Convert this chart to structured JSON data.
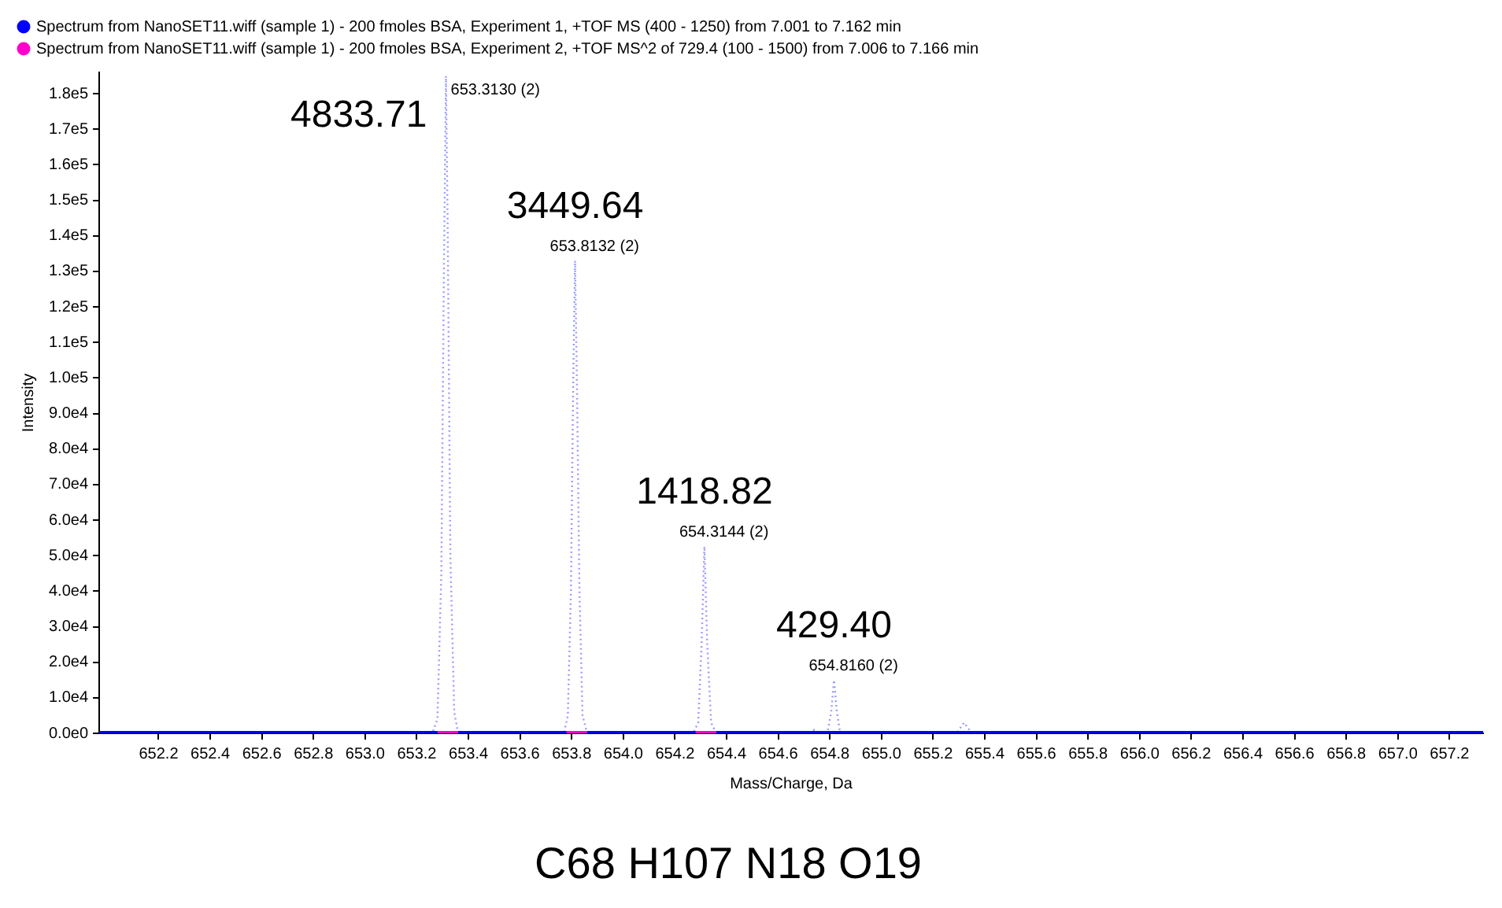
{
  "chart_data": {
    "type": "line",
    "xlabel": "Mass/Charge, Da",
    "ylabel": "Intensity",
    "xlim": [
      651.97,
      657.33
    ],
    "ylim": [
      0,
      186000
    ],
    "xticks": [
      {
        "value": 652.2,
        "label": "652.2"
      },
      {
        "value": 652.4,
        "label": "652.4"
      },
      {
        "value": 652.6,
        "label": "652.6"
      },
      {
        "value": 652.8,
        "label": "652.8"
      },
      {
        "value": 653.0,
        "label": "653.0"
      },
      {
        "value": 653.2,
        "label": "653.2"
      },
      {
        "value": 653.4,
        "label": "653.4"
      },
      {
        "value": 653.6,
        "label": "653.6"
      },
      {
        "value": 653.8,
        "label": "653.8"
      },
      {
        "value": 654.0,
        "label": "654.0"
      },
      {
        "value": 654.2,
        "label": "654.2"
      },
      {
        "value": 654.4,
        "label": "654.4"
      },
      {
        "value": 654.6,
        "label": "654.6"
      },
      {
        "value": 654.8,
        "label": "654.8"
      },
      {
        "value": 655.0,
        "label": "655.0"
      },
      {
        "value": 655.2,
        "label": "655.2"
      },
      {
        "value": 655.4,
        "label": "655.4"
      },
      {
        "value": 655.6,
        "label": "655.6"
      },
      {
        "value": 655.8,
        "label": "655.8"
      },
      {
        "value": 656.0,
        "label": "656.0"
      },
      {
        "value": 656.2,
        "label": "656.2"
      },
      {
        "value": 656.4,
        "label": "656.4"
      },
      {
        "value": 656.6,
        "label": "656.6"
      },
      {
        "value": 656.8,
        "label": "656.8"
      },
      {
        "value": 657.0,
        "label": "657.0"
      },
      {
        "value": 657.2,
        "label": "657.2"
      }
    ],
    "yticks": [
      {
        "value": 0,
        "label": "0.0e0"
      },
      {
        "value": 10000,
        "label": "1.0e4"
      },
      {
        "value": 20000,
        "label": "2.0e4"
      },
      {
        "value": 30000,
        "label": "3.0e4"
      },
      {
        "value": 40000,
        "label": "4.0e4"
      },
      {
        "value": 50000,
        "label": "5.0e4"
      },
      {
        "value": 60000,
        "label": "6.0e4"
      },
      {
        "value": 70000,
        "label": "7.0e4"
      },
      {
        "value": 80000,
        "label": "8.0e4"
      },
      {
        "value": 90000,
        "label": "9.0e4"
      },
      {
        "value": 100000,
        "label": "1.0e5"
      },
      {
        "value": 110000,
        "label": "1.1e5"
      },
      {
        "value": 120000,
        "label": "1.2e5"
      },
      {
        "value": 130000,
        "label": "1.3e5"
      },
      {
        "value": 140000,
        "label": "1.4e5"
      },
      {
        "value": 150000,
        "label": "1.5e5"
      },
      {
        "value": 160000,
        "label": "1.6e5"
      },
      {
        "value": 170000,
        "label": "1.7e5"
      },
      {
        "value": 180000,
        "label": "1.8e5"
      }
    ],
    "grid": false,
    "legend": "top left",
    "marker": "none",
    "series": [
      {
        "color": "#9a9aff",
        "line_style": "dotted",
        "x": [
          651.97,
          653.26,
          653.28,
          653.295,
          653.305,
          653.313,
          653.32,
          653.33,
          653.345,
          653.36,
          653.77,
          653.785,
          653.797,
          653.806,
          653.813,
          653.82,
          653.83,
          653.842,
          653.86,
          654.27,
          654.29,
          654.303,
          654.314,
          654.325,
          654.34,
          654.36,
          654.72,
          654.74,
          654.76,
          654.79,
          654.805,
          654.816,
          654.827,
          654.84,
          654.86,
          655.29,
          655.32,
          655.35,
          657.33
        ],
        "values": [
          0,
          0,
          4000,
          45000,
          130000,
          185000,
          140000,
          50000,
          6000,
          0,
          0,
          5000,
          40000,
          100000,
          133000,
          100000,
          40000,
          5000,
          0,
          0,
          3000,
          25000,
          52600,
          25000,
          3000,
          0,
          0,
          1000,
          0,
          0,
          6000,
          15000,
          6000,
          0,
          0,
          0,
          3000,
          0,
          0
        ]
      },
      {
        "name": "Spectrum from NanoSET11.wiff (sample 1) - 200 fmoles BSA, Experiment 1, +TOF MS (400 - 1250) from 7.001 to 7.162 min",
        "color": "#0000ff",
        "line_style": "solid",
        "x": [
          651.97,
          657.33
        ],
        "values": [
          0,
          0
        ]
      },
      {
        "name": "Spectrum from NanoSET11.wiff (sample 1) - 200 fmoles BSA, Experiment 2, +TOF MS^2 of 729.4 (100 - 1500) from 7.006 to 7.166 min",
        "color": "#ff00cc",
        "line_style": "solid",
        "x": [
          653.28,
          653.36,
          653.37,
          653.78,
          653.86,
          653.87,
          654.28,
          654.36
        ],
        "values": [
          0,
          0,
          null,
          0,
          0,
          null,
          0,
          0
        ]
      }
    ],
    "annotations": [
      {
        "text": "653.3130 (2)",
        "x": 653.313,
        "y": 185000
      },
      {
        "text": "653.8132 (2)",
        "x": 653.8132,
        "y": 133000
      },
      {
        "text": "654.3144 (2)",
        "x": 654.3144,
        "y": 52600
      },
      {
        "text": "654.8160 (2)",
        "x": 654.816,
        "y": 15000
      },
      {
        "text": "4833.71",
        "x": 653.313,
        "y": 185000
      },
      {
        "text": "3449.64",
        "x": 653.8132,
        "y": 133000
      },
      {
        "text": "1418.82",
        "x": 654.3144,
        "y": 52600
      },
      {
        "text": "429.40",
        "x": 654.816,
        "y": 15000
      },
      "C68 H107 N18 O19"
    ]
  }
}
